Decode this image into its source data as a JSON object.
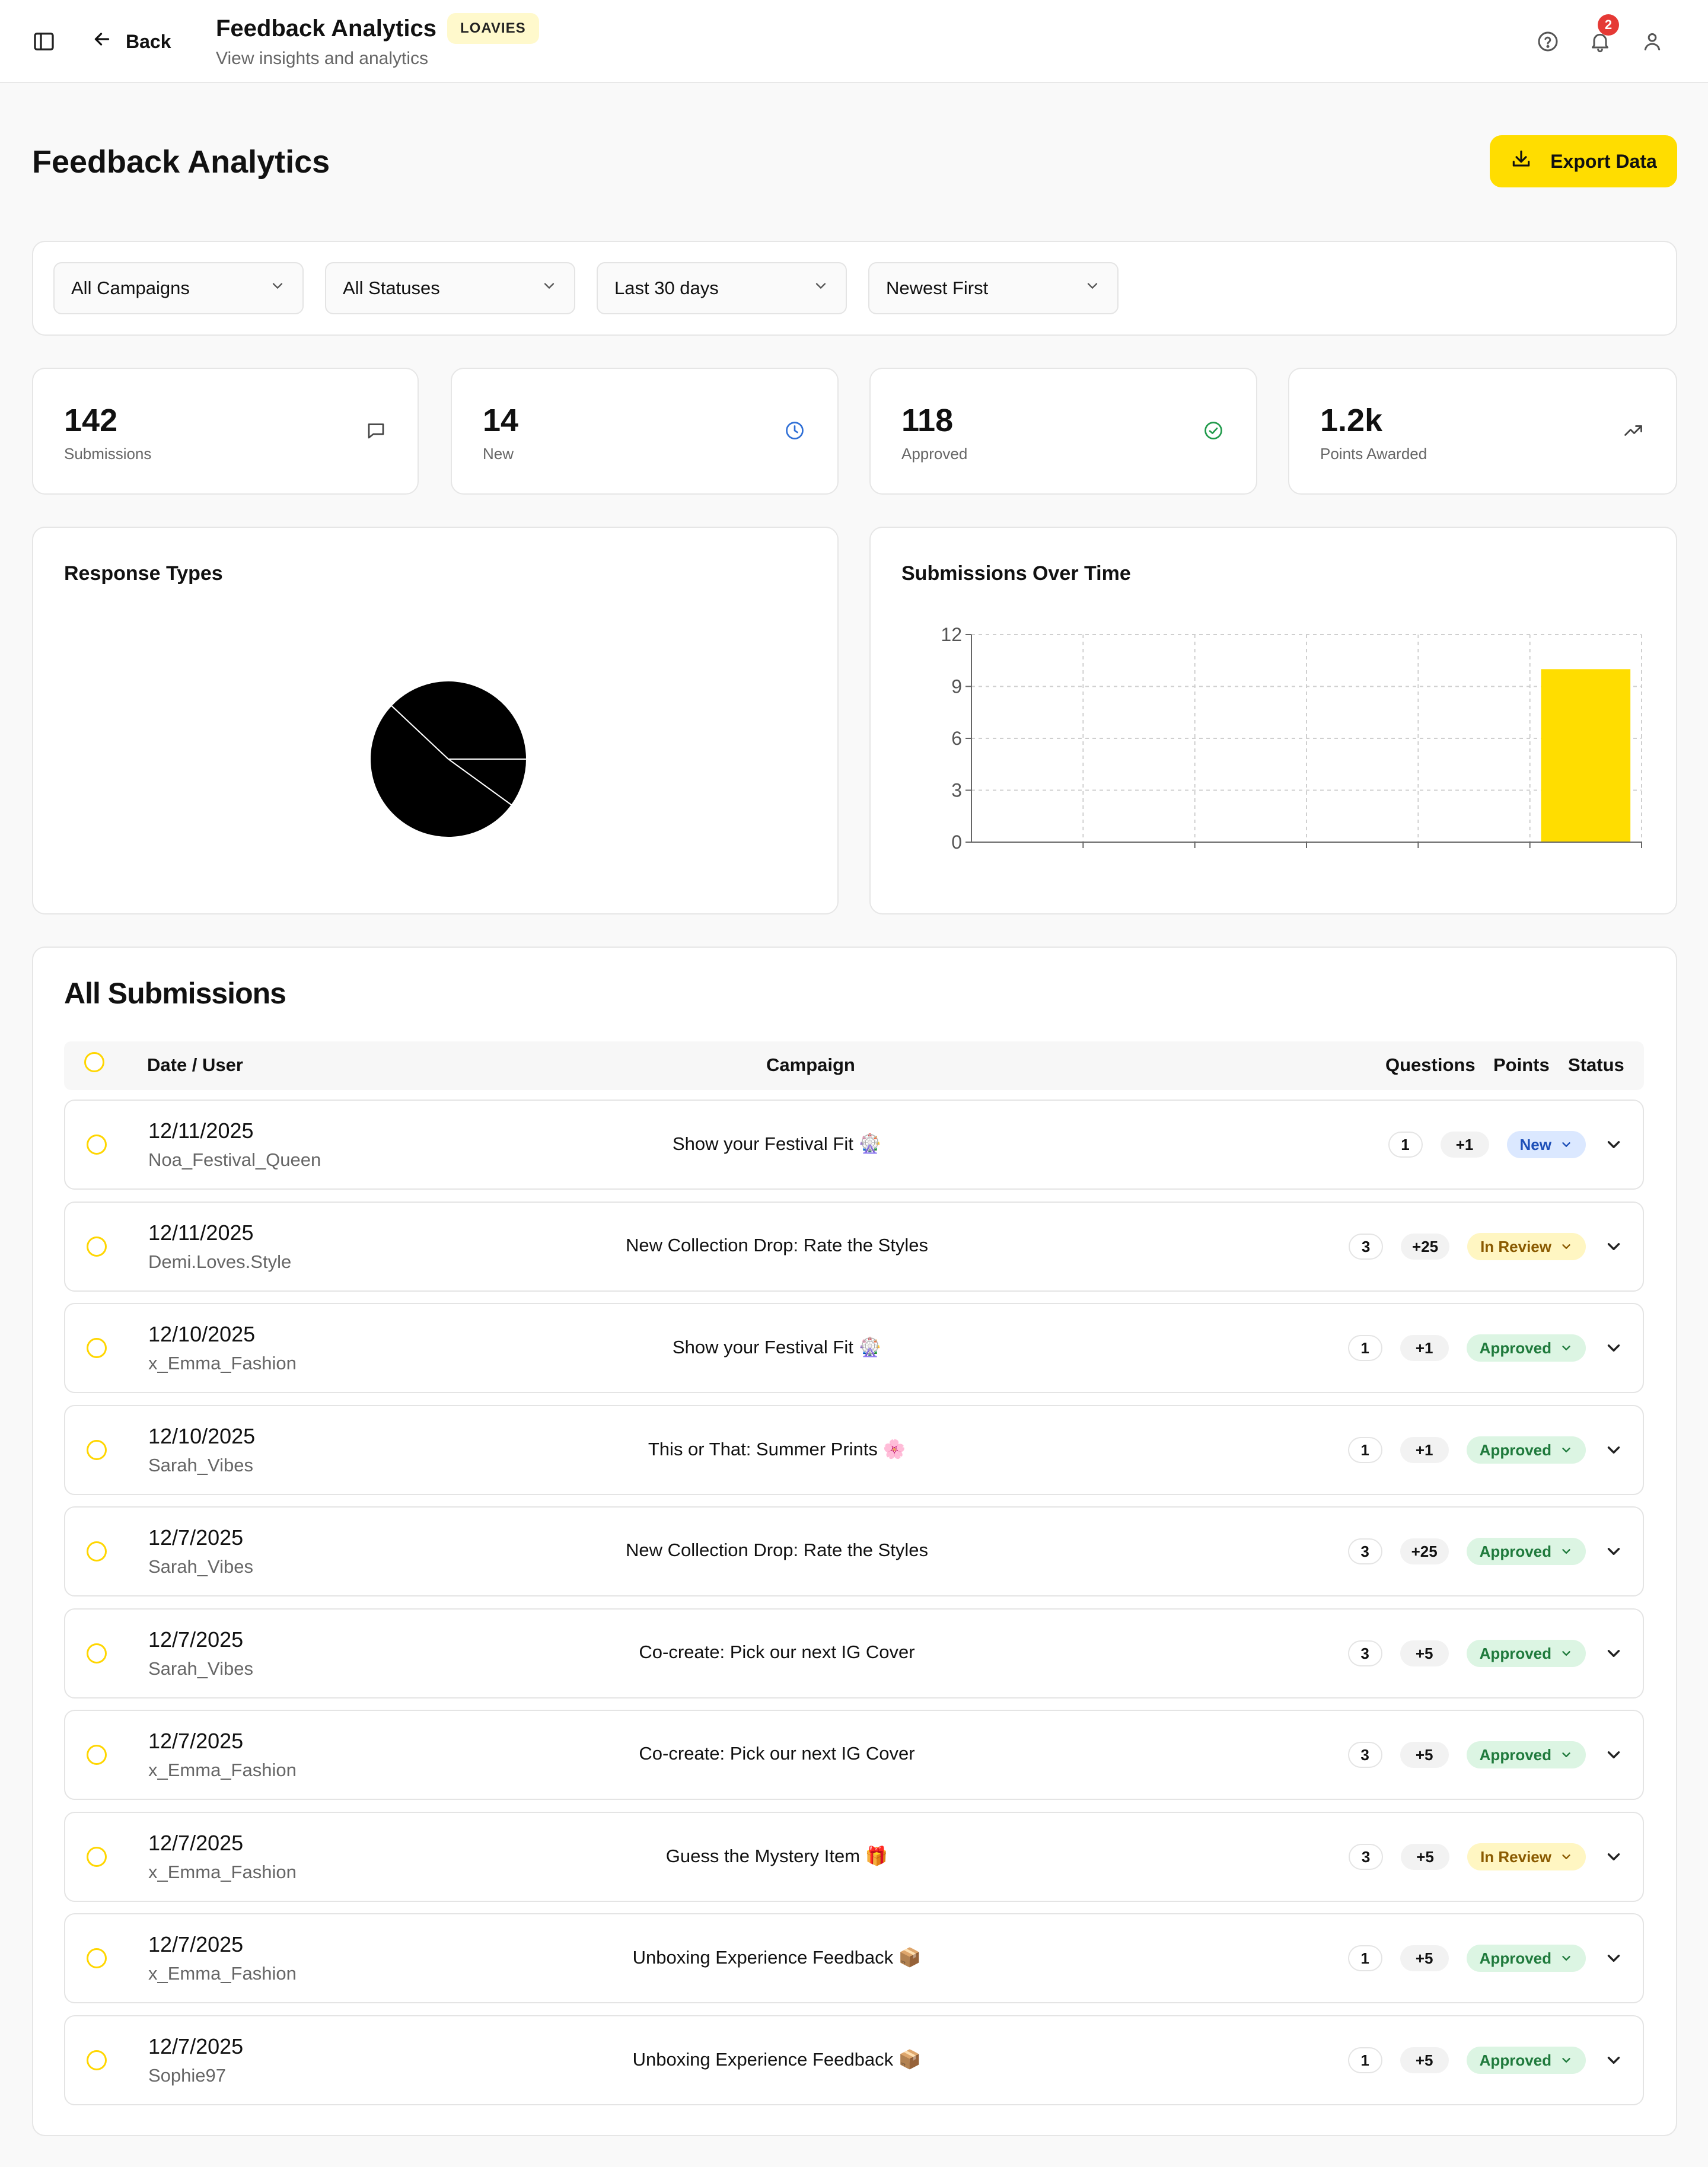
{
  "topbar": {
    "back_label": "Back",
    "title": "Feedback Analytics",
    "brand_badge": "LOAVIES",
    "subtitle": "View insights and analytics",
    "notification_count": "2",
    "icons": [
      "sidebar-toggle-icon",
      "arrow-left-icon",
      "help-icon",
      "bell-icon",
      "user-icon"
    ]
  },
  "page": {
    "title": "Feedback Analytics",
    "export_label": "Export Data",
    "accent_color": "#ffdd00"
  },
  "filters": [
    {
      "selected": "All Campaigns"
    },
    {
      "selected": "All Statuses"
    },
    {
      "selected": "Last 30 days"
    },
    {
      "selected": "Newest First"
    }
  ],
  "stats": [
    {
      "value": "142",
      "label": "Submissions",
      "icon": "message-icon",
      "color": "#444444"
    },
    {
      "value": "14",
      "label": "New",
      "icon": "clock-icon",
      "color": "#2f6fd6"
    },
    {
      "value": "118",
      "label": "Approved",
      "icon": "check-circle-icon",
      "color": "#1f9a4a"
    },
    {
      "value": "1.2k",
      "label": "Points Awarded",
      "icon": "trending-up-icon",
      "color": "#444444"
    }
  ],
  "response_types": {
    "title": "Response Types",
    "chart_data": {
      "type": "pie",
      "slices": [
        {
          "value": 0.1
        },
        {
          "value": 0.52
        },
        {
          "value": 0.38
        }
      ],
      "colors": [
        "#000000"
      ]
    }
  },
  "submissions_over_time": {
    "title": "Submissions Over Time",
    "chart_data": {
      "type": "bar",
      "categories": [
        "",
        "",
        "",
        "",
        "",
        ""
      ],
      "values": [
        0,
        0,
        0,
        0,
        0,
        10
      ],
      "ylim": [
        0,
        12
      ],
      "yticks": [
        "0",
        "3",
        "6",
        "9",
        "12"
      ],
      "grid": true,
      "bar_color": "#ffdd00"
    }
  },
  "submissions": {
    "title": "All Submissions",
    "columns": {
      "date_user": "Date / User",
      "campaign": "Campaign",
      "questions": "Questions",
      "points": "Points",
      "status": "Status"
    },
    "rows": [
      {
        "date": "12/11/2025",
        "user": "Noa_Festival_Queen",
        "campaign": "Show your Festival Fit 🎡",
        "questions": "1",
        "points": "+1",
        "status": "New"
      },
      {
        "date": "12/11/2025",
        "user": "Demi.Loves.Style",
        "campaign": "New Collection Drop: Rate the Styles",
        "questions": "3",
        "points": "+25",
        "status": "In Review"
      },
      {
        "date": "12/10/2025",
        "user": "x_Emma_Fashion",
        "campaign": "Show your Festival Fit 🎡",
        "questions": "1",
        "points": "+1",
        "status": "Approved"
      },
      {
        "date": "12/10/2025",
        "user": "Sarah_Vibes",
        "campaign": "This or That: Summer Prints 🌸",
        "questions": "1",
        "points": "+1",
        "status": "Approved"
      },
      {
        "date": "12/7/2025",
        "user": "Sarah_Vibes",
        "campaign": "New Collection Drop: Rate the Styles",
        "questions": "3",
        "points": "+25",
        "status": "Approved"
      },
      {
        "date": "12/7/2025",
        "user": "Sarah_Vibes",
        "campaign": "Co-create: Pick our next IG Cover",
        "questions": "3",
        "points": "+5",
        "status": "Approved"
      },
      {
        "date": "12/7/2025",
        "user": "x_Emma_Fashion",
        "campaign": "Co-create: Pick our next IG Cover",
        "questions": "3",
        "points": "+5",
        "status": "Approved"
      },
      {
        "date": "12/7/2025",
        "user": "x_Emma_Fashion",
        "campaign": "Guess the Mystery Item 🎁",
        "questions": "3",
        "points": "+5",
        "status": "In Review"
      },
      {
        "date": "12/7/2025",
        "user": "x_Emma_Fashion",
        "campaign": "Unboxing Experience Feedback 📦",
        "questions": "1",
        "points": "+5",
        "status": "Approved"
      },
      {
        "date": "12/7/2025",
        "user": "Sophie97",
        "campaign": "Unboxing Experience Feedback 📦",
        "questions": "1",
        "points": "+5",
        "status": "Approved"
      }
    ]
  }
}
